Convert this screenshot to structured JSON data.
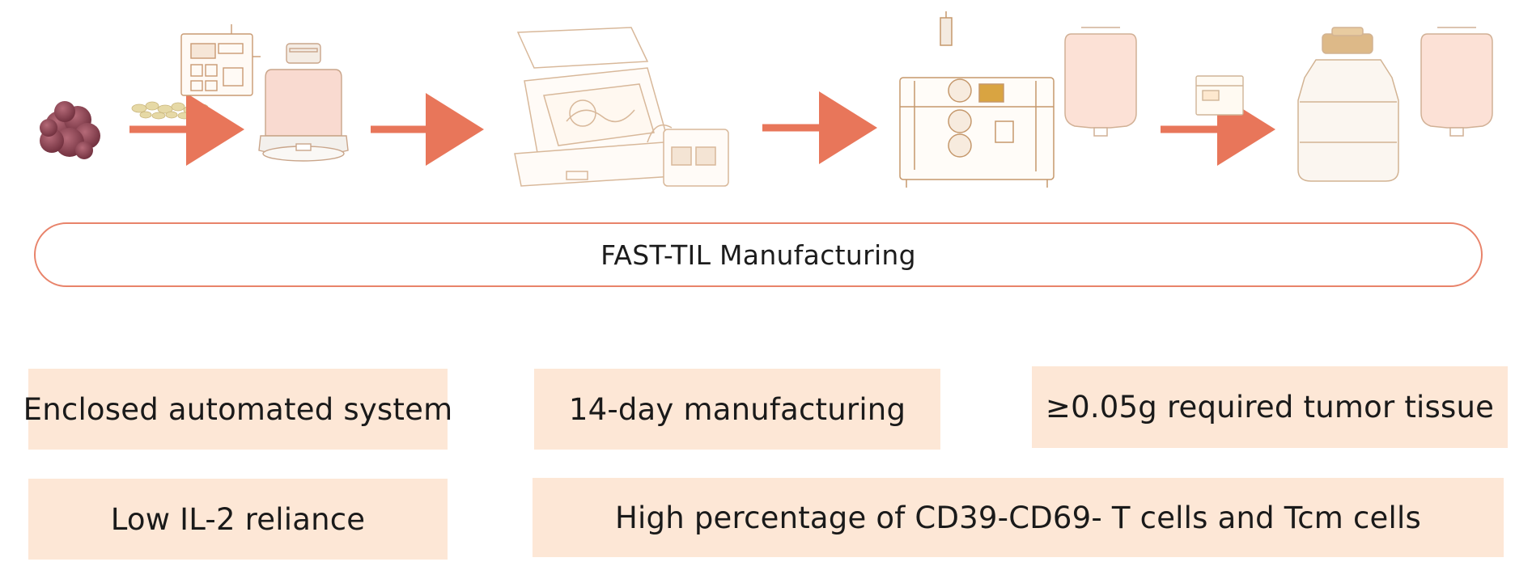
{
  "process": {
    "title": "FAST-TIL Manufacturing",
    "steps": [
      {
        "icon": "tumor-tissue-icon"
      },
      {
        "icon": "tissue-fragments-icon"
      },
      {
        "icon": "control-panel-icon"
      },
      {
        "icon": "culture-flask-icon"
      },
      {
        "icon": "automated-incubator-icon"
      },
      {
        "icon": "cell-processor-icon"
      },
      {
        "icon": "infusion-bag-icon"
      },
      {
        "icon": "shipping-box-icon"
      },
      {
        "icon": "cryo-dewar-icon"
      },
      {
        "icon": "infusion-bag-icon"
      }
    ],
    "colors": {
      "arrow": "#e8765a",
      "banner_border": "#e8836a",
      "line_art": "#d4a882",
      "tile": "#fde7d6",
      "tumor": "#8a3f4e"
    }
  },
  "features": [
    {
      "label": "Enclosed automated system"
    },
    {
      "label": "14-day manufacturing"
    },
    {
      "label": "≥0.05g required tumor tissue"
    },
    {
      "label": "Low IL-2 reliance"
    },
    {
      "label": "High percentage of CD39-CD69- T cells and Tcm cells"
    }
  ]
}
